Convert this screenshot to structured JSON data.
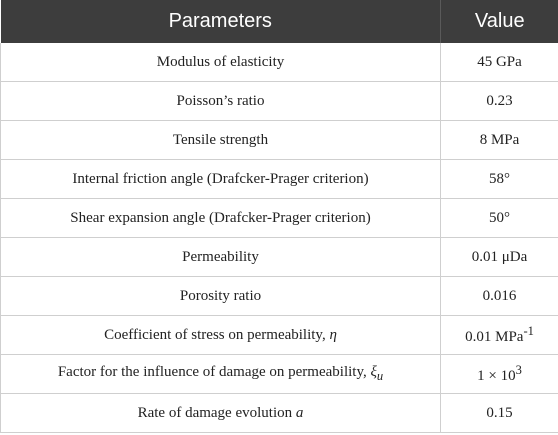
{
  "table": {
    "headers": {
      "parameter": "Parameters",
      "value": "Value"
    },
    "rows": [
      {
        "parameter": "Modulus of elasticity",
        "value": "45 GPa"
      },
      {
        "parameter": "Poisson’s ratio",
        "value": "0.23"
      },
      {
        "parameter": "Tensile strength",
        "value": "8 MPa"
      },
      {
        "parameter": "Internal friction angle (Drafcker-Prager criterion)",
        "value": "58°"
      },
      {
        "parameter": "Shear expansion angle (Drafcker-Prager criterion)",
        "value": "50°"
      },
      {
        "parameter": "Permeability",
        "value": "0.01 μDa"
      },
      {
        "parameter": "Porosity ratio",
        "value": "0.016"
      },
      {
        "parameter_text": "Coefficient of stress on permeability, ",
        "parameter_symbol": "η",
        "value_text": "0.01 MPa",
        "value_sup": "-1"
      },
      {
        "parameter_text": "Factor for the influence of damage on permeability, ",
        "parameter_symbol": "ξ",
        "parameter_sub": "u",
        "value_text": "1 × 10",
        "value_sup": "3"
      },
      {
        "parameter_text": "Rate of damage evolution ",
        "parameter_symbol": "a",
        "value": "0.15"
      }
    ]
  }
}
